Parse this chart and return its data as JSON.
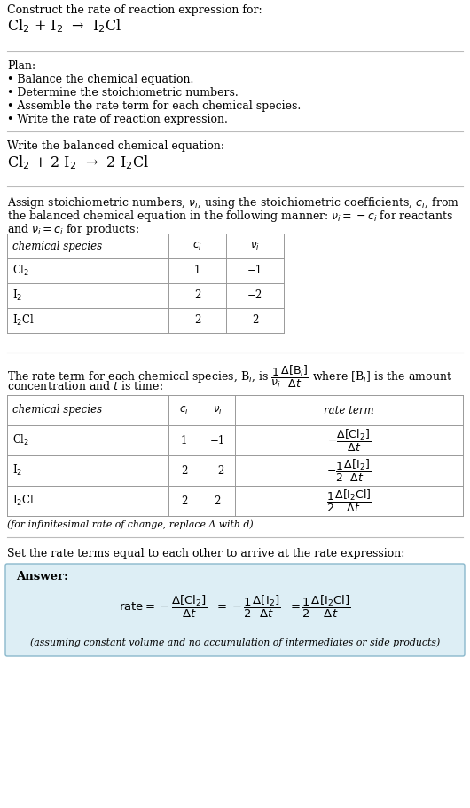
{
  "bg_color": "#ffffff",
  "text_color": "#000000",
  "section1_title": "Construct the rate of reaction expression for:",
  "section1_reaction": "Cl$_2$ + I$_2$  →  I$_2$Cl",
  "section2_title": "Plan:",
  "section2_bullets": [
    "• Balance the chemical equation.",
    "• Determine the stoichiometric numbers.",
    "• Assemble the rate term for each chemical species.",
    "• Write the rate of reaction expression."
  ],
  "section3_title": "Write the balanced chemical equation:",
  "section3_equation": "Cl$_2$ + 2 I$_2$  →  2 I$_2$Cl",
  "section4_intro1": "Assign stoichiometric numbers, $\\nu_i$, using the stoichiometric coefficients, $c_i$, from",
  "section4_intro2": "the balanced chemical equation in the following manner: $\\nu_i = -c_i$ for reactants",
  "section4_intro3": "and $\\nu_i = c_i$ for products:",
  "table1_headers": [
    "chemical species",
    "$c_i$",
    "$\\nu_i$"
  ],
  "table1_rows": [
    [
      "Cl$_2$",
      "1",
      "−1"
    ],
    [
      "I$_2$",
      "2",
      "−2"
    ],
    [
      "I$_2$Cl",
      "2",
      "2"
    ]
  ],
  "section5_intro1": "The rate term for each chemical species, B$_i$, is $\\dfrac{1}{\\nu_i}\\dfrac{\\Delta[\\mathrm{B}_i]}{\\Delta t}$ where [B$_i$] is the amount",
  "section5_intro2": "concentration and $t$ is time:",
  "table2_headers": [
    "chemical species",
    "$c_i$",
    "$\\nu_i$",
    "rate term"
  ],
  "table2_rows": [
    [
      "Cl$_2$",
      "1",
      "−1",
      "$-\\dfrac{\\Delta[\\mathrm{Cl_2}]}{\\Delta t}$"
    ],
    [
      "I$_2$",
      "2",
      "−2",
      "$-\\dfrac{1}{2}\\dfrac{\\Delta[\\mathrm{I_2}]}{\\Delta t}$"
    ],
    [
      "I$_2$Cl",
      "2",
      "2",
      "$\\dfrac{1}{2}\\dfrac{\\Delta[\\mathrm{I_2Cl}]}{\\Delta t}$"
    ]
  ],
  "infinitesimal_note": "(for infinitesimal rate of change, replace Δ with d)",
  "section6_intro": "Set the rate terms equal to each other to arrive at the rate expression:",
  "answer_label": "Answer:",
  "answer_rate_1": "$\\mathrm{rate} = -\\dfrac{\\Delta[\\mathrm{Cl_2}]}{\\Delta t}$",
  "answer_rate_2": "$= -\\dfrac{1}{2}\\dfrac{\\Delta[\\mathrm{I_2}]}{\\Delta t}$",
  "answer_rate_3": "$= \\dfrac{1}{2}\\dfrac{\\Delta[\\mathrm{I_2Cl}]}{\\Delta t}$",
  "answer_note": "(assuming constant volume and no accumulation of intermediates or side products)",
  "answer_bg": "#ddeef5",
  "answer_border": "#8ab8cc"
}
